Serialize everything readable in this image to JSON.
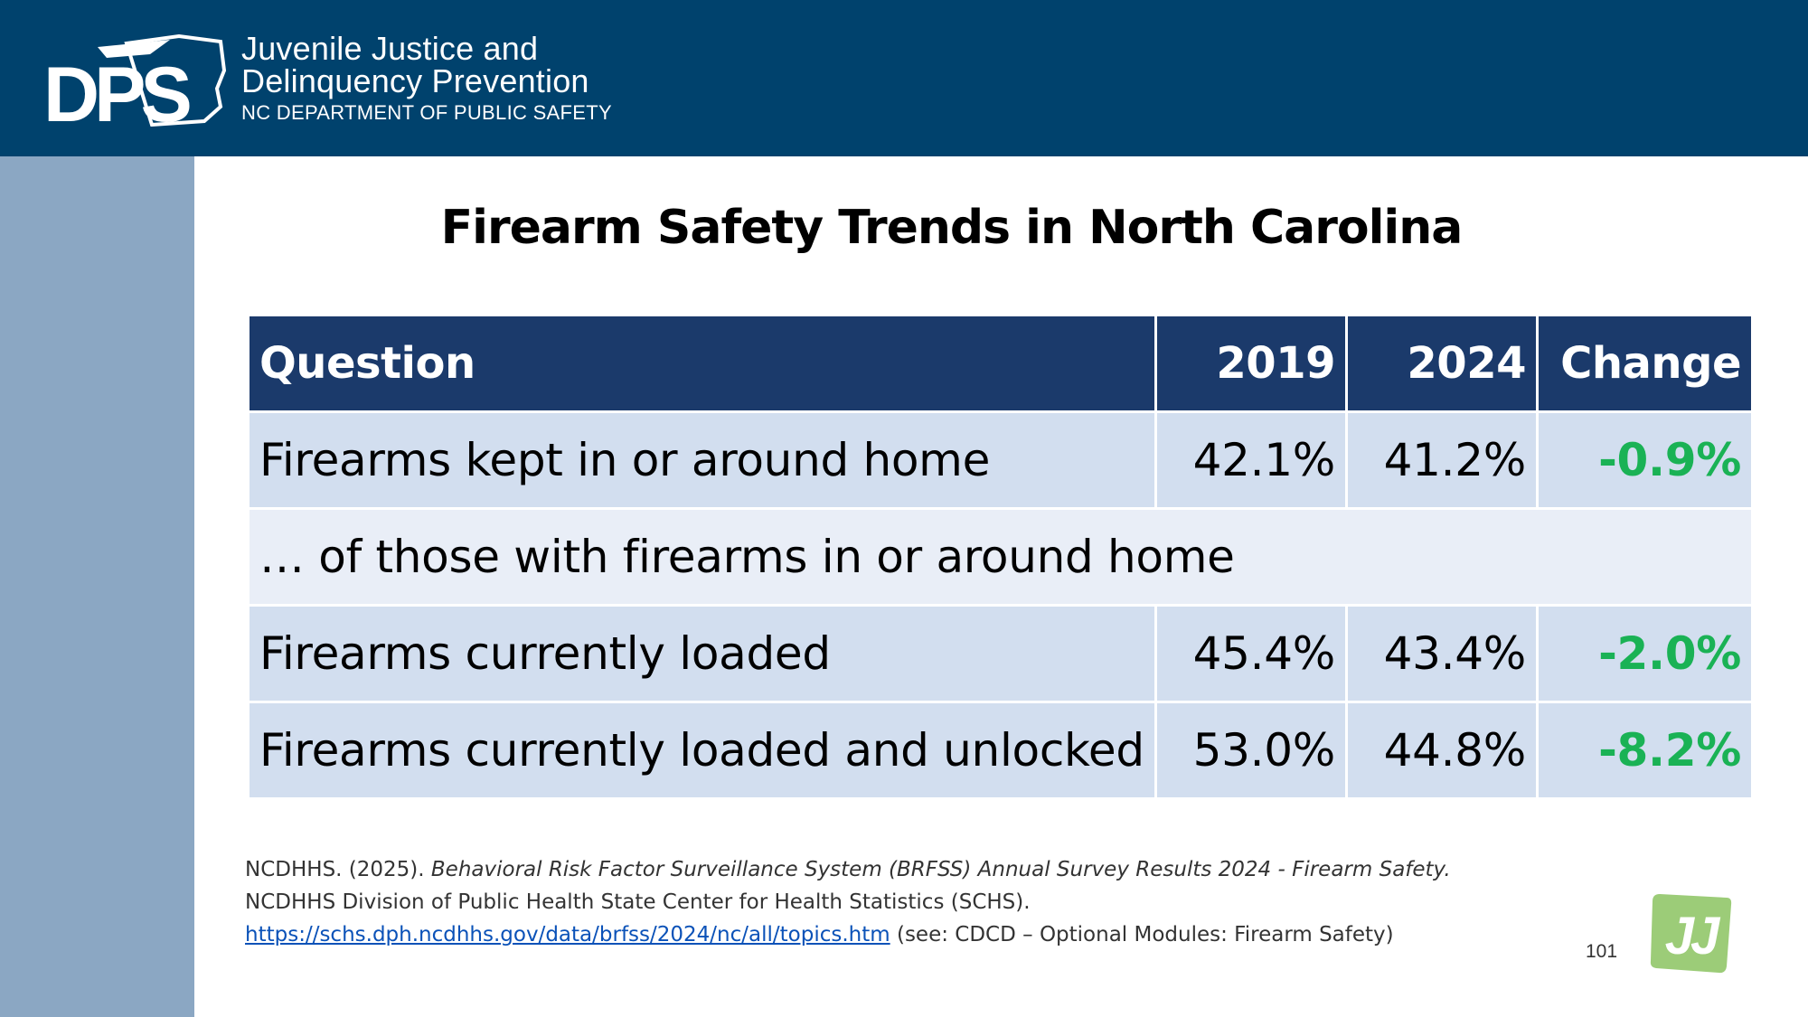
{
  "header": {
    "logo_text": "DPS",
    "org_line1": "Juvenile Justice and",
    "org_line2": "Delinquency Prevention",
    "org_line3": "NC DEPARTMENT OF PUBLIC SAFETY"
  },
  "slide": {
    "title": "Firearm Safety Trends in North Carolina",
    "page_number": "101",
    "badge_text": "JJ"
  },
  "table": {
    "headers": {
      "question": "Question",
      "year1": "2019",
      "year2": "2024",
      "change": "Change"
    },
    "rows": [
      {
        "question": "Firearms kept in or around home",
        "year1": "42.1%",
        "year2": "41.2%",
        "change": "-0.9%"
      },
      {
        "question": "… of those with firearms in or around home"
      },
      {
        "question": "Firearms currently loaded",
        "year1": "45.4%",
        "year2": "43.4%",
        "change": "-2.0%"
      },
      {
        "question": "Firearms currently loaded and unlocked",
        "year1": "53.0%",
        "year2": "44.8%",
        "change": "-8.2%"
      }
    ]
  },
  "citation": {
    "author": "NCDHHS. (2025). ",
    "title": "Behavioral Risk Factor Surveillance System (BRFSS) Annual Survey Results 2024 - Firearm Safety.",
    "publisher": "NCDHHS Division of Public Health State Center for Health Statistics (SCHS).",
    "url": "https://schs.dph.ncdhhs.gov/data/brfss/2024/nc/all/topics.htm",
    "note": " (see: CDCD – Optional Modules: Firearm Safety)"
  },
  "colors": {
    "header_bg": "#00426d",
    "sidebar_bg": "#8ba7c3",
    "table_header_bg": "#1b3a6b",
    "row_a_bg": "#d2deef",
    "row_b_bg": "#e9eef7",
    "change_green": "#1ab255",
    "jj_green": "#9ccc78"
  }
}
